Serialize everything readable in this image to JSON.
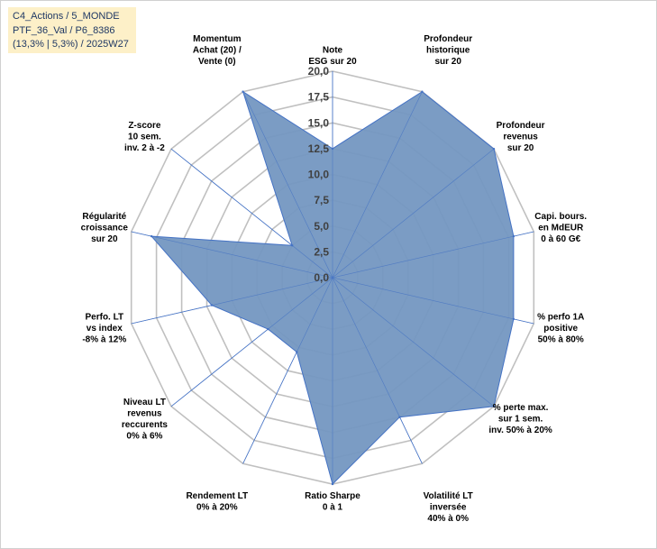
{
  "info_box": {
    "line1": "C4_Actions / 5_MONDE",
    "line2": "PTF_36_Val / P6_8386",
    "line3": "(13,3% | 5,3%) / 2025W27"
  },
  "colors": {
    "series_fill": "#7497c1",
    "series_stroke": "#4472c4",
    "grid": "#c0c0c0",
    "spoke": "#4472c4"
  },
  "chart_data": {
    "type": "radar",
    "categories": [
      [
        "Note",
        "ESG sur 20"
      ],
      [
        "Profondeur",
        "historique",
        "sur 20"
      ],
      [
        "Profondeur",
        "revenus",
        "sur 20"
      ],
      [
        "Capi. bours.",
        "en MdEUR",
        "0 à 60 G€"
      ],
      [
        "% perfo 1A",
        "positive",
        "50% à 80%"
      ],
      [
        "% perte max.",
        "sur 1 sem.",
        "inv. 50% à 20%"
      ],
      [
        "Volatilité LT",
        "inversée",
        "40% à 0%"
      ],
      [
        "Ratio Sharpe",
        "0 à 1"
      ],
      [
        "Rendement LT",
        "0% à 20%"
      ],
      [
        "Niveau LT",
        "revenus",
        "reccurents",
        "0% à 6%"
      ],
      [
        "Perfo. LT",
        "vs index",
        "-8% à 12%"
      ],
      [
        "Régularité",
        "croissance",
        "sur 20"
      ],
      [
        "Z-score",
        "10 sem.",
        "inv. 2 à -2"
      ],
      [
        "Momentum",
        "Achat (20) /",
        "Vente (0)"
      ]
    ],
    "series": [
      {
        "values": [
          12.5,
          20,
          20,
          18,
          18,
          20,
          15,
          20,
          8,
          8,
          12,
          18,
          5,
          20
        ]
      }
    ],
    "rlim": [
      0,
      20
    ],
    "ticks": [
      "0,0",
      "2,5",
      "5,0",
      "7,5",
      "10,0",
      "12,5",
      "15,0",
      "17,5",
      "20,0"
    ],
    "tick_values": [
      0,
      2.5,
      5,
      7.5,
      10,
      12.5,
      15,
      17.5,
      20
    ],
    "legend": "none"
  }
}
